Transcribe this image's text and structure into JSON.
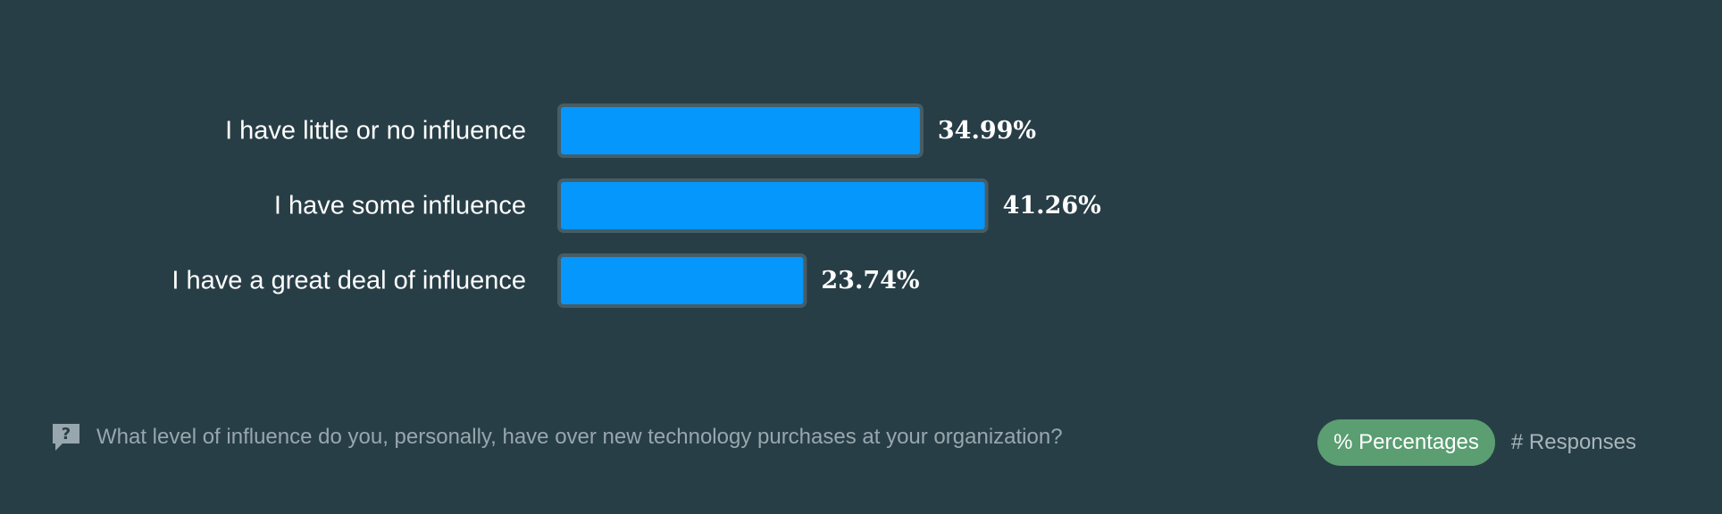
{
  "chart_data": {
    "type": "bar",
    "orientation": "horizontal",
    "categories": [
      "I have little or no influence",
      "I have some influence",
      "I have a great deal of influence"
    ],
    "values": [
      34.99,
      41.26,
      23.74
    ],
    "value_labels": [
      "34.99%",
      "41.26%",
      "23.74%"
    ],
    "unit": "%",
    "xlim": [
      0,
      50
    ],
    "grid": false,
    "colors": {
      "bar": "#0597fb",
      "bar_border": "#475d66",
      "background": "#283e46"
    }
  },
  "footer": {
    "question_icon": "speech-bubble-question-icon",
    "question": "What level of influence do you, personally, have over new technology purchases at your organization?"
  },
  "toggle": {
    "percentages_label": "% Percentages",
    "responses_label": "# Responses",
    "active": "percentages",
    "active_color": "#5a9e72"
  }
}
